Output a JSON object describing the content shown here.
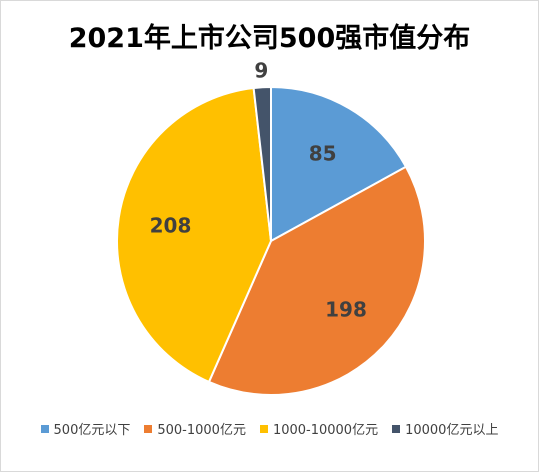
{
  "chart_data": {
    "type": "pie",
    "title": "2021年上市公司500强市值分布",
    "categories": [
      "500亿元以下",
      "500-1000亿元",
      "1000-10000亿元",
      "10000亿元以上"
    ],
    "values": [
      85,
      198,
      208,
      9
    ],
    "data_labels": [
      "85",
      "198",
      "208",
      "9"
    ],
    "colors": [
      "#5B9BD5",
      "#ED7D31",
      "#FFC000",
      "#44546A"
    ],
    "legend_position": "bottom",
    "start_angle": "12 o'clock, clockwise"
  }
}
